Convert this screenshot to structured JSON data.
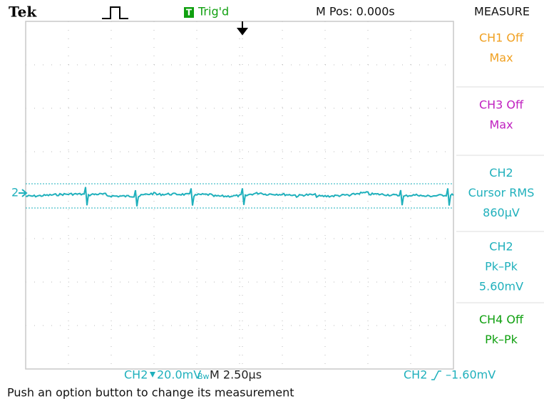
{
  "header": {
    "brand": "Tek",
    "trigger_icon": "T",
    "trigger_status": "Trig'd",
    "position": "M Pos: 0.000s",
    "menu_title": "MEASURE"
  },
  "channel_marker": "2",
  "measurements": [
    {
      "color": "#f0a020",
      "lines": [
        "CH1 Off",
        "Max"
      ]
    },
    {
      "color": "#c020c0",
      "lines": [
        "CH3 Off",
        "Max"
      ]
    },
    {
      "color": "#1fb0bc",
      "lines": [
        "CH2",
        "Cursor RMS",
        "860µV"
      ]
    },
    {
      "color": "#1fb0bc",
      "lines": [
        "CH2",
        "Pk–Pk",
        "5.60mV"
      ]
    },
    {
      "color": "#10a010",
      "lines": [
        "CH4 Off",
        "Pk–Pk"
      ]
    }
  ],
  "footer": {
    "channel": "CH2",
    "scale": "20.0mV",
    "bandwidth": "Bw",
    "timebase": "M 2.50µs",
    "trigger_channel": "CH2",
    "trigger_level": "–1.60mV"
  },
  "status": "Push an option button to change its measurement"
}
